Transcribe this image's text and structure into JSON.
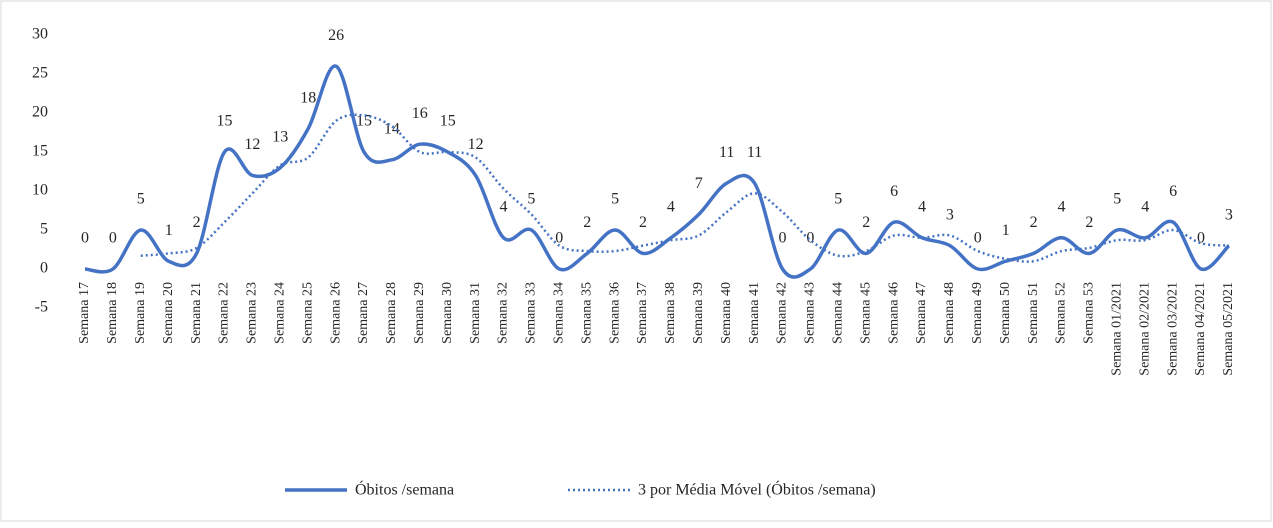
{
  "chart_data": {
    "type": "line",
    "categories": [
      "Semana 17",
      "Semana 18",
      "Semana 19",
      "Semana 20",
      "Semana 21",
      "Semana 22",
      "Semana 23",
      "Semana 24",
      "Semana 25",
      "Semana 26",
      "Semana 27",
      "Semana 28",
      "Semana 29",
      "Semana 30",
      "Semana 31",
      "Semana 32",
      "Semana 33",
      "Semana 34",
      "Semana 35",
      "Semana 36",
      "Semana 37",
      "Semana 38",
      "Semana 39",
      "Semana 40",
      "Semana 41",
      "Semana 42",
      "Semana 43",
      "Semana 44",
      "Semana 45",
      "Semana 46",
      "Semana 47",
      "Semana 48",
      "Semana 49",
      "Semana 50",
      "Semana 51",
      "Semana 52",
      "Semana 53",
      "Semana 01/2021",
      "Semana 02/2021",
      "Semana 03/2021",
      "Semana 04/2021",
      "Semana 05/2021"
    ],
    "series": [
      {
        "name": "Óbitos /semana",
        "color": "#4472c4",
        "style": "solid",
        "data_labels": true,
        "values": [
          0,
          0,
          5,
          1,
          2,
          15,
          12,
          13,
          18,
          26,
          15,
          14,
          16,
          15,
          12,
          4,
          5,
          0,
          2,
          5,
          2,
          4,
          7,
          11,
          11,
          0,
          0,
          5,
          2,
          6,
          4,
          3,
          0,
          1,
          2,
          4,
          2,
          5,
          4,
          6,
          0,
          3
        ]
      },
      {
        "name": "3 por Média Móvel (Óbitos /semana)",
        "color": "#4472c4",
        "style": "dotted",
        "data_labels": false,
        "values": [
          null,
          null,
          1.7,
          2,
          2.7,
          6,
          9.7,
          13.3,
          14.3,
          19,
          19.7,
          18.3,
          15,
          15,
          14.3,
          10.3,
          7,
          3,
          2.3,
          2.3,
          3,
          3.7,
          4.3,
          7.3,
          9.7,
          7.3,
          3.7,
          1.7,
          2.3,
          4.3,
          4,
          4.3,
          2.3,
          1.3,
          1,
          2.3,
          2.7,
          3.7,
          3.7,
          5,
          3.3,
          3
        ]
      }
    ],
    "ylim": [
      -5,
      30
    ],
    "yticks": [
      -5,
      0,
      5,
      10,
      15,
      20,
      25,
      30
    ],
    "grid": false,
    "legend": "bottom",
    "smooth": true
  }
}
